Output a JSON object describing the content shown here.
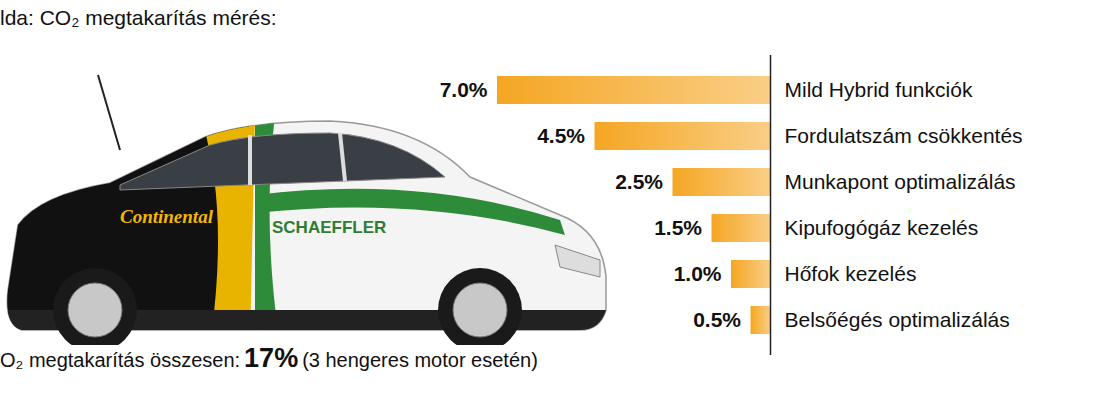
{
  "chart_data": {
    "type": "bar",
    "orientation": "horizontal",
    "title": "lda: CO₂ megtakarítás mérés:",
    "categories": [
      "Mild Hybrid funkciók",
      "Fordulatszám csökkentés",
      "Munkapont optimalizálás",
      "Kipufogógáz kezelés",
      "Hőfok kezelés",
      "Belsőégés optimalizálás"
    ],
    "values": [
      7.0,
      4.5,
      2.5,
      1.5,
      1.0,
      0.5
    ],
    "value_labels": [
      "7.0%",
      "4.5%",
      "2.5%",
      "1.5%",
      "1.0%",
      "0.5%"
    ],
    "data_labels": true,
    "color": "#f5a623",
    "xlim": [
      0,
      7
    ],
    "tick_labels": "y",
    "grid": false,
    "summary": {
      "text": "O₂ megtakarítás összesen:",
      "total": "17%",
      "note": "(3 hengeres motor esetén)"
    },
    "car_labels": [
      "Continental",
      "SCHAEFFLER"
    ]
  }
}
